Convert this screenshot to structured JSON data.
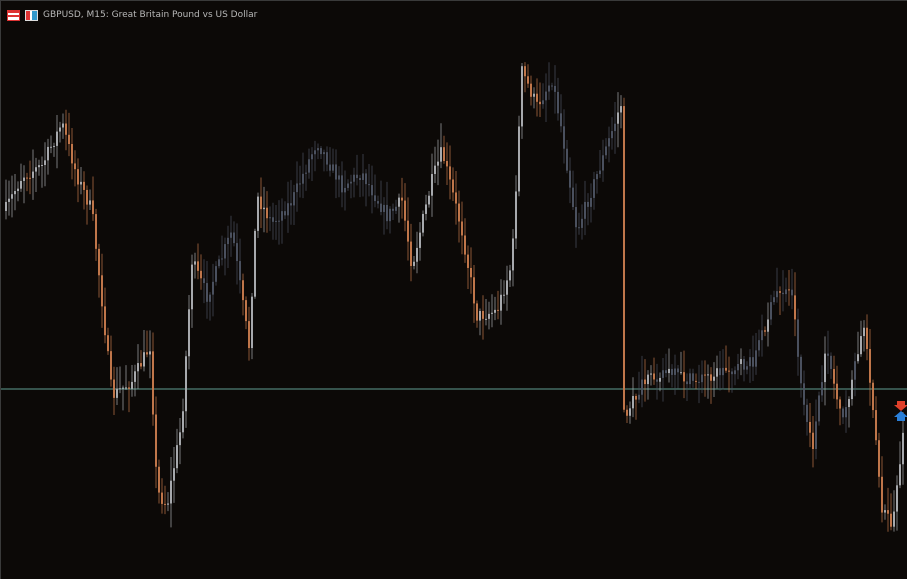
{
  "header": {
    "title": "GBPUSD, M15:  Great Britain Pound vs US Dollar",
    "icons": [
      "market-watch-icon",
      "chart-properties-icon"
    ]
  },
  "colors": {
    "background": "#0c0907",
    "bull_candle": "#a7a9ad",
    "bear_candle": "#c0764a",
    "faded_candle": "#4a505e",
    "price_line": "#5f9d92",
    "sell_arrow": "#e0402a",
    "buy_arrow": "#2a7fd8"
  },
  "chart_data": {
    "type": "candlestick",
    "symbol": "GBPUSD",
    "timeframe": "M15",
    "title": "Great Britain Pound vs US Dollar",
    "grid": false,
    "markers": [
      "sell-arrow",
      "buy-arrow"
    ]
  }
}
